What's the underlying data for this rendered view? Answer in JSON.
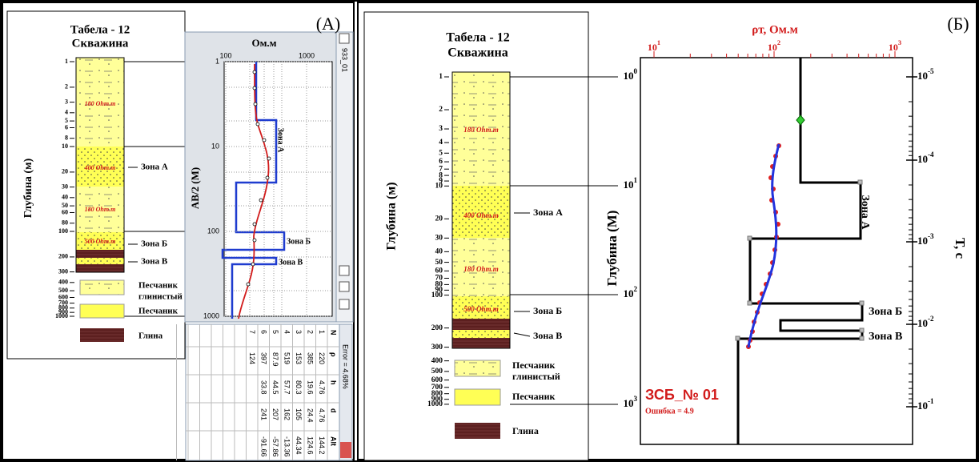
{
  "panel_a": {
    "label": "(А)",
    "log": {
      "title": [
        "Табела - 12",
        "Скважина"
      ],
      "axis_title": "Глубина (м)",
      "depths": [
        1,
        2,
        3,
        4,
        5,
        6,
        8,
        10,
        20,
        30,
        40,
        50,
        60,
        80,
        100,
        200,
        300,
        400,
        500,
        600,
        700,
        800,
        900,
        1000
      ],
      "layer_labels": [
        "180 Ohm.m",
        "400 Ohm.m",
        "180 Ohm.m",
        "500 Ohm.m"
      ],
      "zones": [
        "Зона А",
        "Зона Б",
        "Зона В"
      ],
      "legend": [
        [
          "Песчаник",
          "глинистый"
        ],
        [
          "Песчаник"
        ],
        [
          "Глина"
        ]
      ]
    },
    "window": {
      "window_id": "933_01",
      "x_unit": "Ом.м",
      "x_ticks": [
        100,
        1000
      ],
      "y_title": "AB/2 (M)",
      "y_ticks": [
        1,
        10,
        100,
        1000
      ],
      "zones": [
        "Зона А",
        "Зона Б",
        "Зона В"
      ]
    },
    "table": {
      "error": "Error = 4.68%",
      "header": [
        "N",
        "ρ",
        "h",
        "d",
        "Alt"
      ],
      "rows": [
        [
          1,
          220,
          4.76,
          4.76,
          144.2
        ],
        [
          2,
          385,
          19.6,
          24.4,
          124.6
        ],
        [
          3,
          153,
          80.3,
          105,
          44.34
        ],
        [
          4,
          519,
          57.7,
          162,
          -13.36
        ],
        [
          5,
          87.9,
          44.5,
          207,
          -57.86
        ],
        [
          6,
          397,
          33.8,
          241,
          -91.66
        ],
        [
          7,
          124
        ]
      ]
    }
  },
  "panel_b": {
    "label": "(Б)",
    "log": {
      "title": [
        "Табела - 12",
        "Скважина"
      ],
      "axis_title": "Глубина (м)",
      "depths": [
        1,
        2,
        3,
        4,
        5,
        6,
        7,
        8,
        9,
        10,
        20,
        30,
        40,
        50,
        60,
        70,
        80,
        90,
        100,
        200,
        300,
        400,
        500,
        600,
        700,
        800,
        900,
        1000
      ],
      "layer_labels": [
        "180 Ohm.m",
        "400 Ohm.m",
        "180 Ohm.m",
        "500 Ohm.m"
      ],
      "zones": [
        "Зона А",
        "Зона Б",
        "Зона В"
      ],
      "legend": [
        [
          "Песчаник",
          "глинистый"
        ],
        [
          "Песчаник"
        ],
        [
          "Глина"
        ]
      ]
    },
    "plot": {
      "x_title": "ρт, Ом.м",
      "x_ticks": [
        {
          "base": "10",
          "exp": "1"
        },
        {
          "base": "10",
          "exp": "2"
        },
        {
          "base": "10",
          "exp": "3"
        }
      ],
      "y_title": "Глубина (М)",
      "depth_ticks": [
        {
          "base": "10",
          "exp": "0"
        },
        {
          "base": "10",
          "exp": "1"
        },
        {
          "base": "10",
          "exp": "2"
        },
        {
          "base": "10",
          "exp": "3"
        }
      ],
      "time_title": "T, c",
      "time_ticks": [
        {
          "base": "10",
          "exp": "-5"
        },
        {
          "base": "10",
          "exp": "-4"
        },
        {
          "base": "10",
          "exp": "-3"
        },
        {
          "base": "10",
          "exp": "-2"
        },
        {
          "base": "10",
          "exp": "-1"
        }
      ],
      "zones": [
        "Зона А",
        "Зона Б",
        "Зона В"
      ],
      "sounding": "ЗСБ_№ 01",
      "error": "Ошибка = 4.9"
    }
  }
}
